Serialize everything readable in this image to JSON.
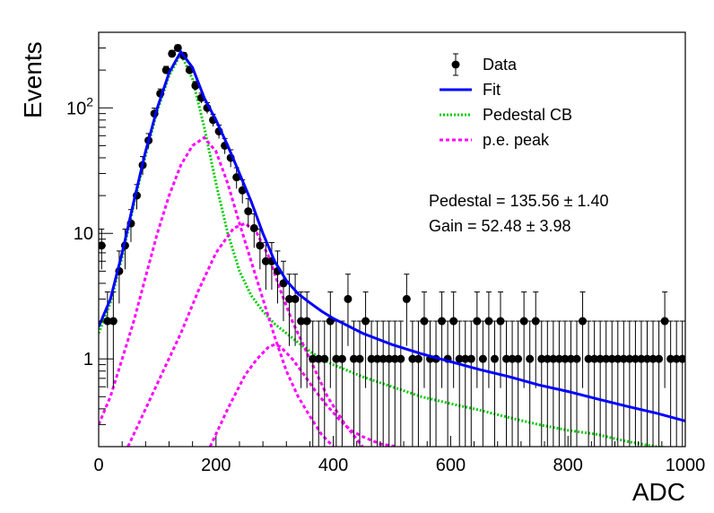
{
  "chart_data": {
    "type": "scatter",
    "xlabel": "ADC",
    "ylabel": "Events",
    "xlim": [
      0,
      1000
    ],
    "ylim": [
      0.2,
      400
    ],
    "y_scale": "log",
    "grid": false,
    "legend_position": "top-right",
    "x_ticks": [
      0,
      200,
      400,
      600,
      800,
      1000
    ],
    "y_ticks": [
      1,
      10,
      100
    ],
    "y_tick_labels": [
      "1",
      "10",
      "10^2"
    ],
    "legend": [
      "Data",
      "Fit",
      "Pedestal CB",
      "p.e. peak"
    ],
    "annotations": [
      {
        "label": "Pedestal",
        "value": "135.56",
        "error": "1.40"
      },
      {
        "label": "Gain",
        "value": "52.48",
        "error": "3.98"
      }
    ],
    "series": [
      {
        "name": "Data",
        "x": [
          5,
          15,
          25,
          35,
          45,
          55,
          65,
          75,
          85,
          95,
          105,
          115,
          125,
          135,
          145,
          155,
          165,
          175,
          185,
          195,
          205,
          215,
          225,
          235,
          245,
          255,
          265,
          275,
          285,
          295,
          305,
          315,
          325,
          335,
          345,
          355,
          365,
          375,
          385,
          395,
          405,
          415,
          425,
          435,
          445,
          455,
          465,
          475,
          485,
          495,
          505,
          515,
          525,
          535,
          545,
          555,
          565,
          575,
          585,
          595,
          605,
          615,
          625,
          635,
          645,
          655,
          665,
          675,
          685,
          695,
          705,
          715,
          725,
          735,
          745,
          755,
          765,
          775,
          785,
          795,
          805,
          815,
          825,
          835,
          845,
          855,
          865,
          875,
          885,
          895,
          905,
          915,
          925,
          935,
          945,
          955,
          965,
          975,
          985,
          995
        ],
        "y": [
          8,
          2,
          2,
          5,
          8,
          12,
          20,
          35,
          55,
          90,
          130,
          200,
          270,
          300,
          260,
          200,
          150,
          120,
          100,
          80,
          65,
          50,
          40,
          28,
          22,
          15,
          11,
          8,
          6,
          6,
          5,
          4,
          3,
          3,
          2,
          2,
          1,
          1,
          1,
          2,
          1,
          1,
          3,
          1,
          1,
          2,
          1,
          1,
          1,
          1,
          1,
          1,
          3,
          1,
          1,
          2,
          1,
          1,
          2,
          1,
          2,
          1,
          1,
          1,
          2,
          1,
          2,
          1,
          2,
          1,
          1,
          1,
          2,
          1,
          2,
          1,
          1,
          1,
          1,
          1,
          1,
          1,
          2,
          1,
          1,
          1,
          1,
          1,
          1,
          1,
          1,
          1,
          1,
          1,
          1,
          1,
          2,
          1,
          1,
          1
        ],
        "color": "#000000"
      },
      {
        "name": "Fit",
        "x": [
          0,
          20,
          40,
          60,
          80,
          100,
          120,
          140,
          160,
          180,
          200,
          220,
          240,
          260,
          280,
          300,
          320,
          340,
          360,
          380,
          400,
          450,
          500,
          550,
          600,
          650,
          700,
          750,
          800,
          850,
          900,
          950,
          1000
        ],
        "y": [
          1.8,
          3.0,
          7.0,
          18,
          45,
          100,
          190,
          280,
          210,
          120,
          80,
          50,
          30,
          18,
          10,
          6,
          4.2,
          3.3,
          2.8,
          2.4,
          2.1,
          1.6,
          1.3,
          1.1,
          0.95,
          0.82,
          0.72,
          0.62,
          0.55,
          0.48,
          0.42,
          0.37,
          0.32
        ],
        "color": "#0000ff"
      },
      {
        "name": "Pedestal CB",
        "x": [
          0,
          20,
          40,
          60,
          80,
          100,
          120,
          140,
          160,
          180,
          200,
          220,
          240,
          260,
          280,
          300,
          320,
          340,
          360,
          380,
          400,
          450,
          500,
          550,
          600,
          650,
          700,
          750,
          800,
          850,
          900,
          950,
          1000
        ],
        "y": [
          1.6,
          2.8,
          6.5,
          17,
          42,
          95,
          180,
          270,
          170,
          70,
          25,
          10,
          5,
          3.2,
          2.4,
          1.9,
          1.6,
          1.35,
          1.15,
          1.0,
          0.9,
          0.72,
          0.6,
          0.5,
          0.44,
          0.39,
          0.34,
          0.3,
          0.27,
          0.25,
          0.22,
          0.2,
          0.19
        ],
        "color": "#00cc00"
      },
      {
        "name": "p.e. peak",
        "x": [
          0,
          20,
          40,
          60,
          80,
          100,
          120,
          140,
          160,
          180,
          200,
          220,
          240,
          260,
          280,
          300,
          320,
          340,
          360,
          380,
          400
        ],
        "y": [
          0.3,
          0.5,
          1.0,
          2.0,
          4.5,
          10,
          20,
          35,
          50,
          58,
          45,
          25,
          12,
          6,
          3,
          1.5,
          0.8,
          0.5,
          0.35,
          0.25,
          0.2
        ],
        "color": "#ff00ff"
      },
      {
        "name": "p.e. peak 2",
        "x": [
          50,
          80,
          110,
          140,
          170,
          200,
          230,
          250,
          270,
          290,
          310,
          330,
          360,
          390,
          420,
          450
        ],
        "y": [
          0.2,
          0.4,
          0.8,
          1.6,
          3.5,
          7,
          11,
          12,
          10,
          6.5,
          3.5,
          2,
          1,
          0.5,
          0.3,
          0.2
        ],
        "color": "#ff00ff"
      },
      {
        "name": "p.e. peak 3",
        "x": [
          190,
          220,
          250,
          270,
          290,
          300,
          310,
          330,
          350,
          370,
          390,
          410,
          430,
          450,
          480,
          510
        ],
        "y": [
          0.2,
          0.4,
          0.75,
          1.0,
          1.25,
          1.3,
          1.25,
          1.0,
          0.75,
          0.55,
          0.42,
          0.33,
          0.27,
          0.24,
          0.21,
          0.2
        ],
        "color": "#ff00ff"
      }
    ]
  }
}
